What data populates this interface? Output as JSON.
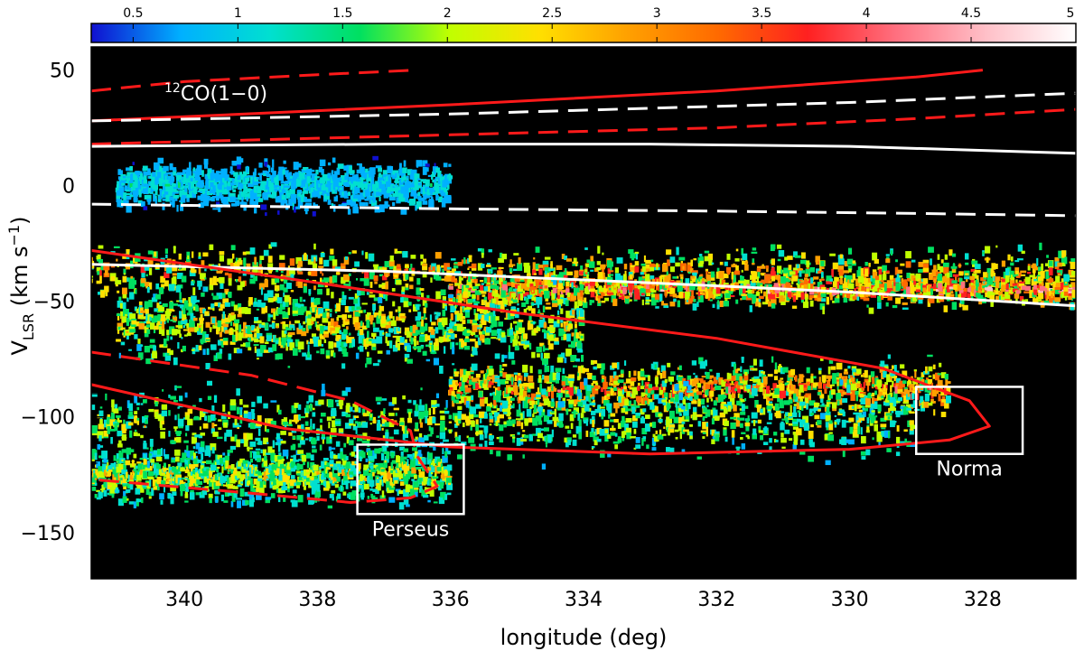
{
  "chart_data": {
    "type": "heatmap",
    "title": "",
    "xlabel": "longitude (deg)",
    "ylabel_main": "V",
    "ylabel_sub": "LSR",
    "ylabel_units_pre": " (km s",
    "ylabel_units_exp": "−1",
    "ylabel_units_post": ")",
    "xlim": [
      341.4,
      326.6
    ],
    "ylim": [
      -170,
      60
    ],
    "x_ticks": [
      340,
      338,
      336,
      334,
      332,
      330,
      328
    ],
    "x_tick_labels": [
      "340",
      "338",
      "336",
      "334",
      "332",
      "330",
      "328"
    ],
    "y_ticks": [
      50,
      0,
      -50,
      -100,
      -150
    ],
    "y_tick_labels": [
      "50",
      "0",
      "−50",
      "−100",
      "−150"
    ],
    "colorbar": {
      "range": [
        0.3,
        5.0
      ],
      "ticks": [
        0.5,
        1,
        1.5,
        2,
        2.5,
        3,
        3.5,
        4,
        4.5,
        5
      ],
      "tick_labels": [
        "0.5",
        "1",
        "1.5",
        "2",
        "2.5",
        "3",
        "3.5",
        "4",
        "4.5",
        "5"
      ],
      "colors": [
        "#1010d0",
        "#00b0ff",
        "#00e0d0",
        "#00e060",
        "#c0ff00",
        "#ffe000",
        "#ffa000",
        "#ff6a00",
        "#ff2020",
        "#ff7080",
        "#ffc0c8",
        "#ffffff"
      ]
    },
    "emission_bands": [
      {
        "v_center": -38,
        "v_width": 9,
        "l_from": 341.4,
        "l_to": 326.6,
        "intensity": 3.2
      },
      {
        "v_center": -45,
        "v_width": 6,
        "l_from": 336.0,
        "l_to": 326.6,
        "intensity": 3.8
      },
      {
        "v_center": -60,
        "v_width": 14,
        "l_from": 341.0,
        "l_to": 334.0,
        "intensity": 2.6
      },
      {
        "v_center": -88,
        "v_width": 10,
        "l_from": 336.0,
        "l_to": 328.5,
        "intensity": 3.3
      },
      {
        "v_center": -103,
        "v_width": 12,
        "l_from": 341.4,
        "l_to": 329.0,
        "intensity": 2.3
      },
      {
        "v_center": -125,
        "v_width": 10,
        "l_from": 341.4,
        "l_to": 336.0,
        "intensity": 2.4
      },
      {
        "v_center": 0,
        "v_width": 8,
        "l_from": 341.0,
        "l_to": 336.0,
        "intensity": 1.2
      }
    ],
    "curves": [
      {
        "color": "#ff1a1a",
        "style": "solid",
        "points": [
          [
            341.4,
            28
          ],
          [
            336.0,
            35
          ],
          [
            332.0,
            41
          ],
          [
            329.0,
            47
          ],
          [
            328.0,
            50
          ]
        ]
      },
      {
        "color": "#ff1a1a",
        "style": "dashed",
        "points": [
          [
            341.4,
            41
          ],
          [
            340.0,
            45
          ],
          [
            338.0,
            48
          ],
          [
            336.5,
            50
          ]
        ]
      },
      {
        "color": "#ff1a1a",
        "style": "dashed",
        "points": [
          [
            341.4,
            18
          ],
          [
            336.0,
            22
          ],
          [
            332.0,
            25
          ],
          [
            329.0,
            29
          ],
          [
            326.6,
            33
          ]
        ]
      },
      {
        "color": "#ffffff",
        "style": "dashed",
        "points": [
          [
            341.4,
            28
          ],
          [
            336.0,
            31
          ],
          [
            330.0,
            36
          ],
          [
            326.6,
            40
          ]
        ]
      },
      {
        "color": "#ffffff",
        "style": "solid",
        "points": [
          [
            341.4,
            17
          ],
          [
            337.0,
            18
          ],
          [
            333.0,
            18
          ],
          [
            330.0,
            17
          ],
          [
            326.6,
            14
          ]
        ]
      },
      {
        "color": "#ffffff",
        "style": "dashed",
        "points": [
          [
            341.4,
            -8
          ],
          [
            336.0,
            -10
          ],
          [
            332.0,
            -11
          ],
          [
            329.0,
            -12
          ],
          [
            326.6,
            -13
          ]
        ]
      },
      {
        "color": "#ffffff",
        "style": "solid",
        "points": [
          [
            341.4,
            -34
          ],
          [
            337.0,
            -37
          ],
          [
            333.0,
            -42
          ],
          [
            330.0,
            -46
          ],
          [
            326.6,
            -52
          ]
        ]
      },
      {
        "color": "#ff1a1a",
        "style": "solid",
        "points": [
          [
            341.4,
            -28
          ],
          [
            338.0,
            -42
          ],
          [
            335.0,
            -55
          ],
          [
            332.0,
            -66
          ],
          [
            329.5,
            -79
          ],
          [
            328.2,
            -93
          ],
          [
            327.9,
            -104
          ],
          [
            328.5,
            -110
          ],
          [
            330.0,
            -114
          ],
          [
            333.0,
            -116
          ],
          [
            336.0,
            -113
          ],
          [
            338.5,
            -105
          ],
          [
            341.4,
            -86
          ]
        ]
      },
      {
        "color": "#ff1a1a",
        "style": "dashed",
        "points": [
          [
            341.4,
            -72
          ],
          [
            339.0,
            -82
          ],
          [
            337.5,
            -93
          ],
          [
            336.6,
            -106
          ],
          [
            336.5,
            -117
          ],
          [
            336.2,
            -130
          ],
          [
            336.6,
            -135
          ],
          [
            337.5,
            -137
          ],
          [
            339.0,
            -133
          ],
          [
            341.4,
            -127
          ]
        ]
      }
    ],
    "boxes": [
      {
        "name": "Perseus",
        "l_min": 335.8,
        "l_max": 337.4,
        "v_min": -142,
        "v_max": -112
      },
      {
        "name": "Norma",
        "l_min": 327.4,
        "l_max": 329.0,
        "v_min": -116,
        "v_max": -87
      }
    ],
    "annotations": {
      "co_label_sup": "12",
      "co_label": "CO(1−0)"
    }
  }
}
